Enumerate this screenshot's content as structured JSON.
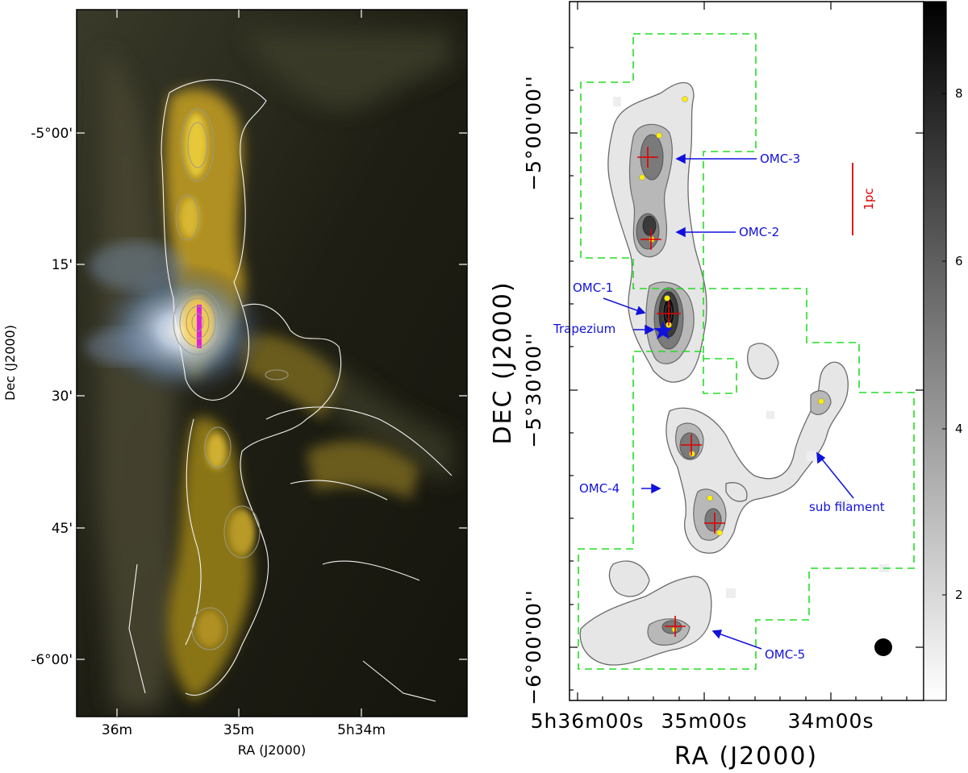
{
  "left_panel": {
    "dec_labels": [
      "-5°00'",
      "15'",
      "30'",
      "45'",
      "-6°00'"
    ],
    "ra_labels": [
      "36m",
      "35m",
      "5h34m"
    ],
    "xlabel": "RA (J2000)",
    "ylabel": "Dec (J2000)"
  },
  "right_panel": {
    "dec_labels": [
      "−5°00'00''",
      "−5°30'00''",
      "−6°00'00''"
    ],
    "ra_labels": [
      "5h36m00s",
      "35m00s",
      "34m00s"
    ],
    "xlabel": "RA (J2000)",
    "ylabel": "DEC (J2000)",
    "colorbar_ticks": [
      "8",
      "6",
      "4",
      "2"
    ],
    "scale_bar_label": "1pc",
    "annotations": [
      "OMC-3",
      "OMC-2",
      "OMC-1",
      "Trapezium",
      "OMC-4",
      "sub filament",
      "OMC-5"
    ]
  },
  "colors": {
    "annotation": "#1111dd",
    "marker": "#e00000",
    "region_box": "#22dd22",
    "core": "#ffee00"
  }
}
